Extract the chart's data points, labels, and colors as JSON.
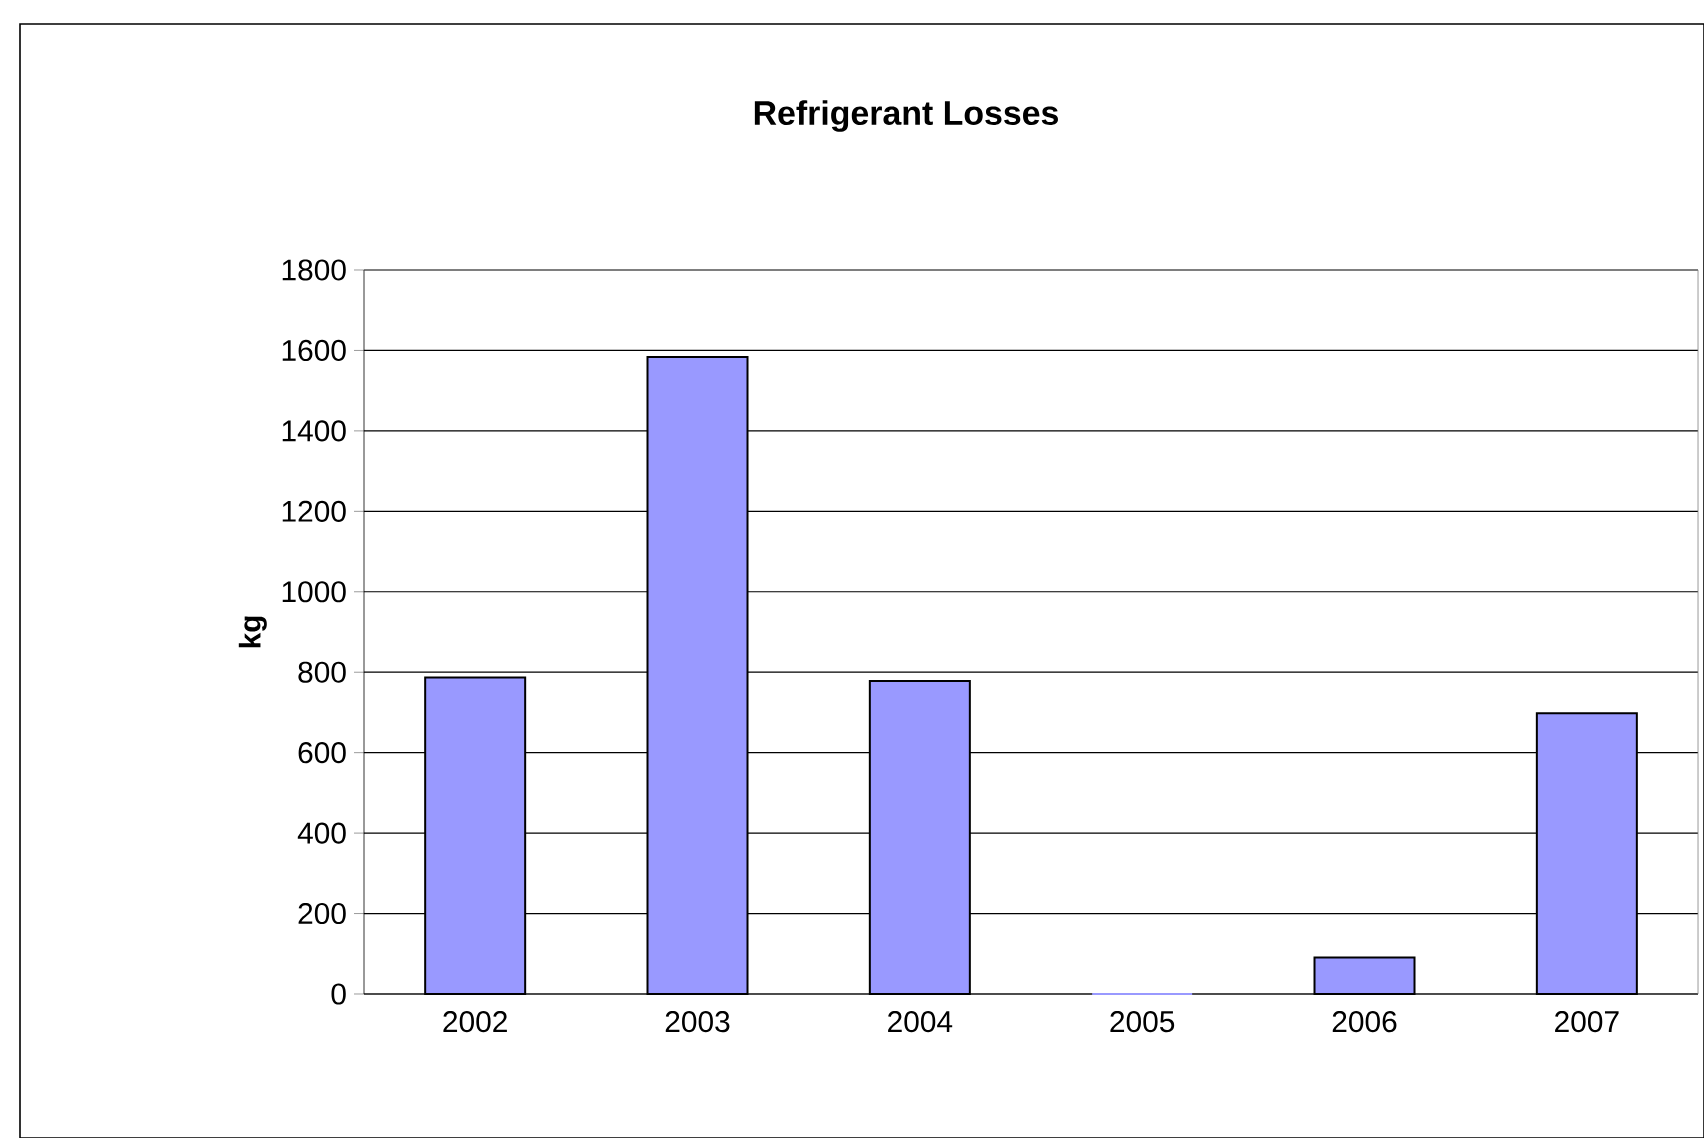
{
  "chart_data": {
    "type": "bar",
    "title": "Refrigerant Losses",
    "ylabel": "kg",
    "categories": [
      "2002",
      "2003",
      "2004",
      "2005",
      "2006",
      "2007"
    ],
    "values": [
      787,
      1584,
      778,
      0,
      91,
      698
    ],
    "color": "#9999ff",
    "ylim": [
      0,
      1800
    ],
    "yticks": [
      0,
      200,
      400,
      600,
      800,
      1000,
      1200,
      1400,
      1600,
      1800
    ],
    "grid": "y"
  }
}
